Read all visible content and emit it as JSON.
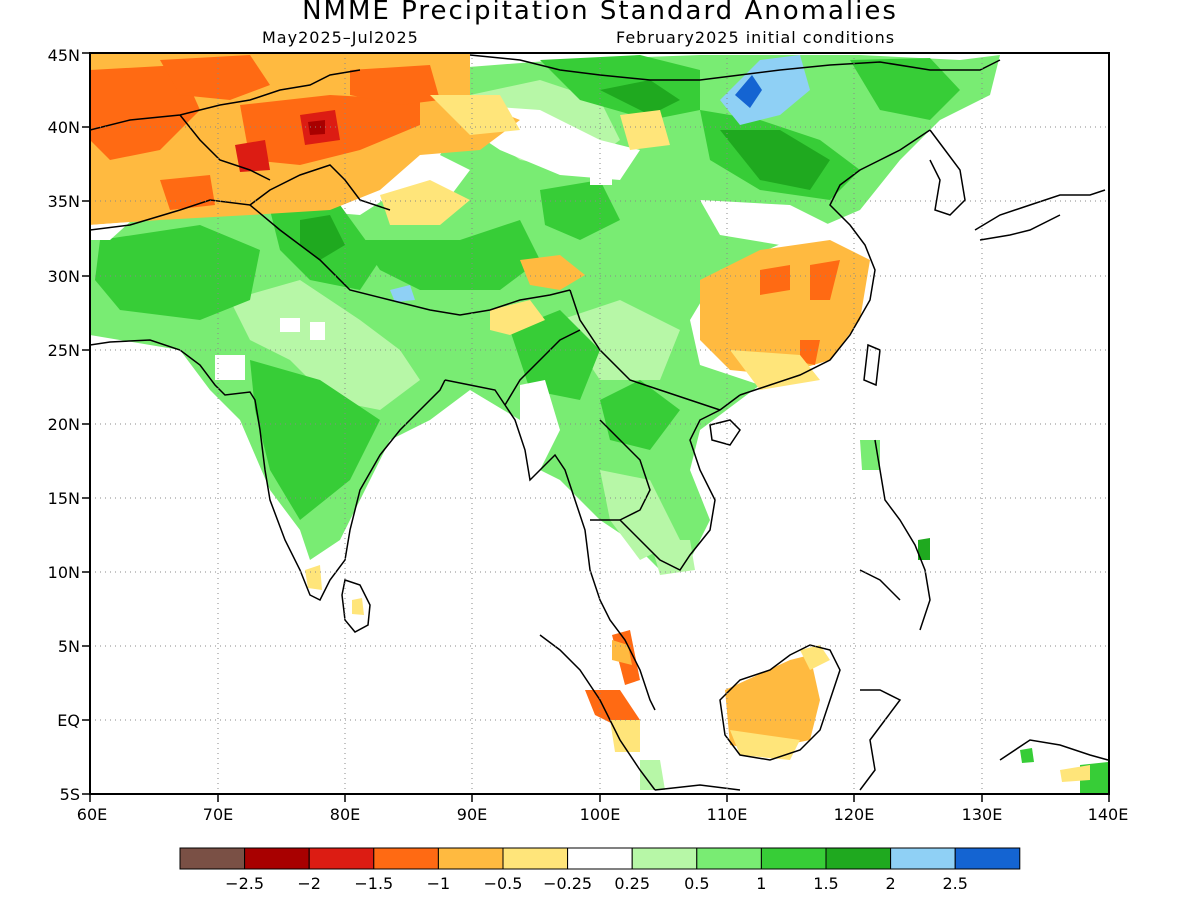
{
  "title": "NMME Precipitation Standard Anomalies",
  "subtitle_period": "May2025–Jul2025",
  "subtitle_init": "February2025 initial conditions",
  "map": {
    "lon_range": [
      60,
      140
    ],
    "lat_range": [
      -5,
      45
    ],
    "x_ticks": [
      "60E",
      "70E",
      "80E",
      "90E",
      "100E",
      "110E",
      "120E",
      "130E",
      "140E"
    ],
    "y_ticks": [
      "5S",
      "EQ",
      "5N",
      "10N",
      "15N",
      "20N",
      "25N",
      "30N",
      "35N",
      "40N",
      "45N"
    ],
    "grid": "dotted"
  },
  "colorbar": {
    "colors": [
      "#7a5045",
      "#a80000",
      "#dc1c13",
      "#ff6a13",
      "#ffba40",
      "#ffe57a",
      "#ffffff",
      "#b7f7a7",
      "#79ec73",
      "#37cd37",
      "#1fa91f",
      "#8fd0f5",
      "#1464d2"
    ],
    "labels": [
      "−2.5",
      "−2",
      "−1.5",
      "−1",
      "−0.5",
      "−0.25",
      "0.25",
      "0.5",
      "1",
      "1.5",
      "2",
      "2.5"
    ]
  }
}
